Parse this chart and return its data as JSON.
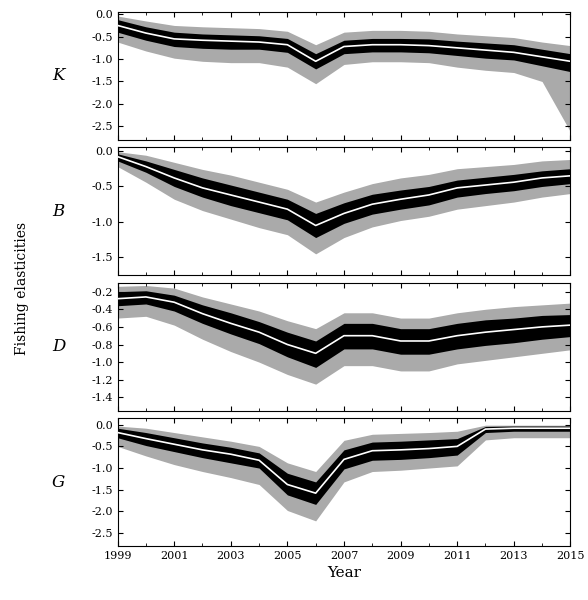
{
  "years": [
    1999,
    2000,
    2001,
    2002,
    2003,
    2004,
    2005,
    2006,
    2007,
    2008,
    2009,
    2010,
    2011,
    2012,
    2013,
    2014,
    2015
  ],
  "panels": [
    {
      "label": "K",
      "ylim": [
        -2.8,
        0.05
      ],
      "yticks": [
        0.0,
        -0.5,
        -1.0,
        -1.5,
        -2.0,
        -2.5
      ],
      "mean": [
        -0.25,
        -0.42,
        -0.55,
        -0.58,
        -0.6,
        -0.62,
        -0.68,
        -1.05,
        -0.72,
        -0.68,
        -0.68,
        -0.7,
        -0.75,
        -0.8,
        -0.85,
        -0.95,
        -1.05
      ],
      "upper": [
        -0.12,
        -0.28,
        -0.4,
        -0.44,
        -0.46,
        -0.48,
        -0.54,
        -0.88,
        -0.58,
        -0.54,
        -0.54,
        -0.55,
        -0.6,
        -0.64,
        -0.68,
        -0.78,
        -0.88
      ],
      "lower": [
        -0.4,
        -0.58,
        -0.72,
        -0.76,
        -0.78,
        -0.78,
        -0.85,
        -1.22,
        -0.88,
        -0.84,
        -0.84,
        -0.86,
        -0.92,
        -0.98,
        -1.02,
        -1.15,
        -1.28
      ],
      "ci_upper": [
        -0.04,
        -0.15,
        -0.25,
        -0.28,
        -0.3,
        -0.32,
        -0.38,
        -0.68,
        -0.4,
        -0.36,
        -0.36,
        -0.38,
        -0.44,
        -0.48,
        -0.52,
        -0.62,
        -0.7
      ],
      "ci_lower": [
        -0.62,
        -0.82,
        -0.98,
        -1.05,
        -1.08,
        -1.08,
        -1.18,
        -1.55,
        -1.12,
        -1.06,
        -1.06,
        -1.08,
        -1.18,
        -1.25,
        -1.3,
        -1.5,
        -2.62
      ]
    },
    {
      "label": "B",
      "ylim": [
        -1.75,
        0.05
      ],
      "yticks": [
        0.0,
        -0.5,
        -1.0,
        -1.5
      ],
      "mean": [
        -0.08,
        -0.22,
        -0.38,
        -0.52,
        -0.62,
        -0.72,
        -0.82,
        -1.05,
        -0.88,
        -0.75,
        -0.68,
        -0.62,
        -0.52,
        -0.48,
        -0.44,
        -0.38,
        -0.35
      ],
      "upper": [
        -0.04,
        -0.14,
        -0.26,
        -0.38,
        -0.48,
        -0.58,
        -0.68,
        -0.88,
        -0.73,
        -0.61,
        -0.55,
        -0.5,
        -0.41,
        -0.37,
        -0.33,
        -0.28,
        -0.25
      ],
      "lower": [
        -0.14,
        -0.3,
        -0.5,
        -0.65,
        -0.77,
        -0.87,
        -0.97,
        -1.22,
        -1.02,
        -0.89,
        -0.82,
        -0.76,
        -0.65,
        -0.6,
        -0.56,
        -0.5,
        -0.46
      ],
      "ci_upper": [
        -0.01,
        -0.06,
        -0.16,
        -0.26,
        -0.34,
        -0.44,
        -0.54,
        -0.72,
        -0.58,
        -0.46,
        -0.38,
        -0.33,
        -0.25,
        -0.22,
        -0.19,
        -0.14,
        -0.12
      ],
      "ci_lower": [
        -0.22,
        -0.44,
        -0.68,
        -0.84,
        -0.96,
        -1.08,
        -1.18,
        -1.45,
        -1.22,
        -1.07,
        -0.98,
        -0.92,
        -0.82,
        -0.77,
        -0.72,
        -0.65,
        -0.6
      ]
    },
    {
      "label": "D",
      "ylim": [
        -1.55,
        -0.1
      ],
      "yticks": [
        -0.2,
        -0.4,
        -0.6,
        -0.8,
        -1.0,
        -1.2,
        -1.4
      ],
      "mean": [
        -0.28,
        -0.26,
        -0.32,
        -0.45,
        -0.56,
        -0.66,
        -0.8,
        -0.9,
        -0.7,
        -0.7,
        -0.76,
        -0.76,
        -0.7,
        -0.66,
        -0.63,
        -0.6,
        -0.58
      ],
      "upper": [
        -0.2,
        -0.19,
        -0.24,
        -0.35,
        -0.44,
        -0.54,
        -0.66,
        -0.76,
        -0.56,
        -0.56,
        -0.62,
        -0.62,
        -0.56,
        -0.52,
        -0.5,
        -0.47,
        -0.46
      ],
      "lower": [
        -0.36,
        -0.34,
        -0.42,
        -0.56,
        -0.68,
        -0.79,
        -0.94,
        -1.06,
        -0.85,
        -0.85,
        -0.91,
        -0.91,
        -0.85,
        -0.81,
        -0.78,
        -0.74,
        -0.71
      ],
      "ci_upper": [
        -0.14,
        -0.13,
        -0.16,
        -0.26,
        -0.34,
        -0.42,
        -0.53,
        -0.62,
        -0.44,
        -0.44,
        -0.5,
        -0.5,
        -0.44,
        -0.4,
        -0.37,
        -0.35,
        -0.33
      ],
      "ci_lower": [
        -0.5,
        -0.48,
        -0.58,
        -0.74,
        -0.88,
        -1.0,
        -1.14,
        -1.25,
        -1.04,
        -1.04,
        -1.1,
        -1.1,
        -1.02,
        -0.98,
        -0.94,
        -0.9,
        -0.86
      ]
    },
    {
      "label": "G",
      "ylim": [
        -2.8,
        0.15
      ],
      "yticks": [
        0.0,
        -0.5,
        -1.0,
        -1.5,
        -2.0,
        -2.5
      ],
      "mean": [
        -0.18,
        -0.32,
        -0.45,
        -0.58,
        -0.68,
        -0.82,
        -1.38,
        -1.58,
        -0.8,
        -0.6,
        -0.58,
        -0.55,
        -0.5,
        -0.1,
        -0.08,
        -0.08,
        -0.08
      ],
      "upper": [
        -0.08,
        -0.18,
        -0.3,
        -0.42,
        -0.52,
        -0.65,
        -1.12,
        -1.32,
        -0.58,
        -0.4,
        -0.38,
        -0.35,
        -0.32,
        -0.04,
        -0.03,
        -0.03,
        -0.03
      ],
      "lower": [
        -0.3,
        -0.48,
        -0.62,
        -0.76,
        -0.88,
        -1.0,
        -1.62,
        -1.84,
        -1.02,
        -0.82,
        -0.8,
        -0.76,
        -0.7,
        -0.18,
        -0.15,
        -0.15,
        -0.15
      ],
      "ci_upper": [
        -0.03,
        -0.08,
        -0.18,
        -0.28,
        -0.38,
        -0.5,
        -0.88,
        -1.08,
        -0.36,
        -0.22,
        -0.2,
        -0.18,
        -0.15,
        -0.01,
        -0.01,
        -0.01,
        -0.01
      ],
      "ci_lower": [
        -0.5,
        -0.72,
        -0.92,
        -1.08,
        -1.22,
        -1.38,
        -1.98,
        -2.22,
        -1.32,
        -1.08,
        -1.05,
        -1.0,
        -0.95,
        -0.35,
        -0.3,
        -0.3,
        -0.3
      ]
    }
  ],
  "ylabel": "Fishing elasticities",
  "xlabel": "Year",
  "xticks": [
    1999,
    2001,
    2003,
    2005,
    2007,
    2009,
    2011,
    2013,
    2015
  ],
  "fill_color": "#aaaaaa",
  "band_color": "#000000",
  "mean_color": "#ffffff",
  "background_color": "#ffffff"
}
